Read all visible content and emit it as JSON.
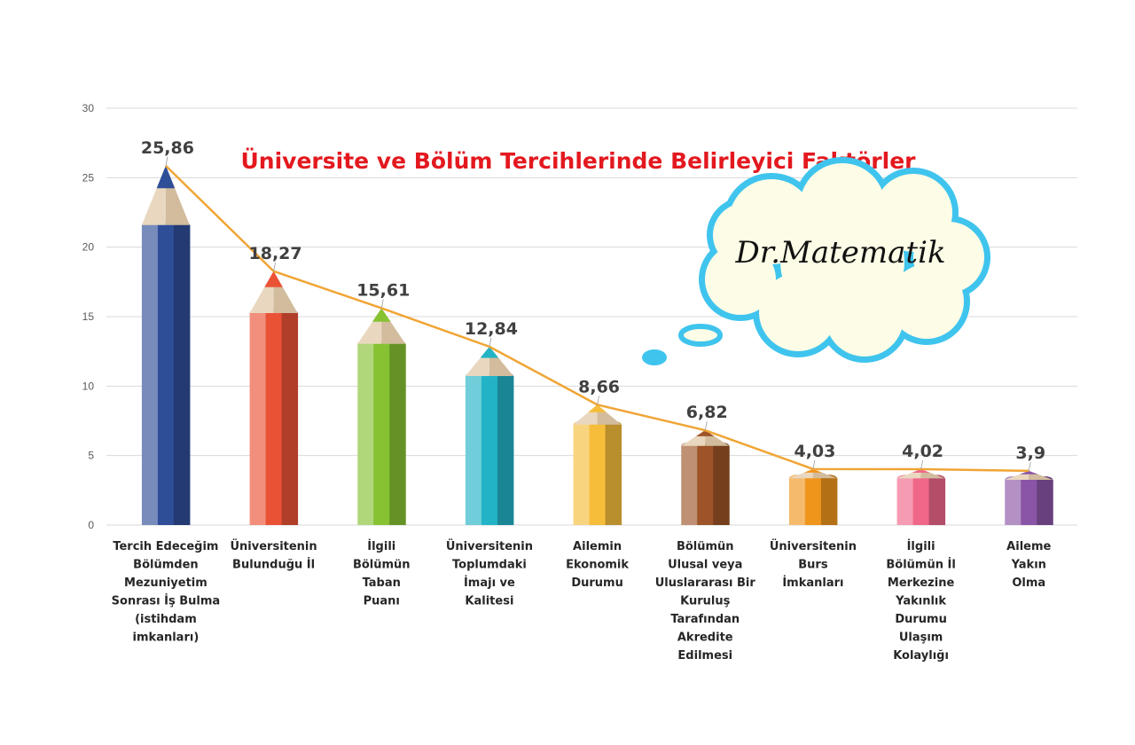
{
  "chart_data": {
    "type": "bar",
    "style": "pencil bars with connecting line",
    "title": "Üniversite ve Bölüm Tercihlerinde Belirleyici Faktörler",
    "xlabel": "",
    "ylabel": "",
    "ylim": [
      0,
      30
    ],
    "yticks": [
      0,
      5,
      10,
      15,
      20,
      25,
      30
    ],
    "grid": true,
    "categories": [
      [
        "Tercih Edeceğim",
        "Bölümden",
        "Mezuniyetim",
        "Sonrası İş Bulma",
        "(istihdam",
        "imkanları)"
      ],
      [
        "Üniversitenin",
        "Bulunduğu İl"
      ],
      [
        "İlgili",
        "Bölümün",
        "Taban",
        "Puanı"
      ],
      [
        "Üniversitenin",
        "Toplumdaki",
        "İmajı ve",
        "Kalitesi"
      ],
      [
        "Ailemin",
        "Ekonomik",
        "Durumu"
      ],
      [
        "Bölümün",
        "Ulusal veya",
        "Uluslararası Bir",
        "Kuruluş",
        "Tarafından",
        "Akredite",
        "Edilmesi"
      ],
      [
        "Üniversitenin",
        "Burs",
        "İmkanları"
      ],
      [
        "İlgili",
        "Bölümün İl",
        "Merkezine",
        "Yakınlık",
        "Durumu",
        "Ulaşım",
        "Kolaylığı"
      ],
      [
        "Aileme",
        "Yakın",
        "Olma"
      ]
    ],
    "values": [
      25.86,
      18.27,
      15.61,
      12.84,
      8.66,
      6.82,
      4.03,
      4.02,
      3.9
    ],
    "data_labels": [
      "25,86",
      "18,27",
      "15,61",
      "12,84",
      "8,66",
      "6,82",
      "4,03",
      "4,02",
      "3,9"
    ],
    "colors": [
      "#2f4e98",
      "#ea5236",
      "#86c232",
      "#22b3c6",
      "#f6bd3a",
      "#9c5428",
      "#f0951c",
      "#f0678a",
      "#8a55a6"
    ],
    "line_color": "#f0a535"
  },
  "watermark": {
    "text": "Dr.Matematik",
    "cloud_stroke": "#3fc4ee",
    "cloud_fill": "#fdfce6"
  }
}
